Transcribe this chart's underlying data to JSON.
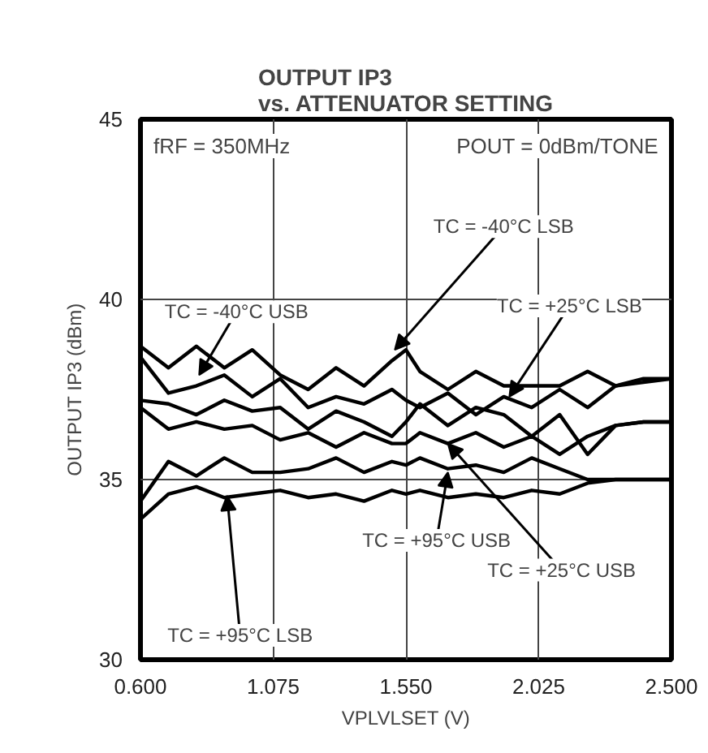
{
  "chart_data": {
    "type": "line",
    "title": "OUTPUT IP3\nvs. ATTENUATOR SETTING",
    "xlabel": "VPLVLSET (V)",
    "ylabel": "OUTPUT IP3 (dBm)",
    "x": [
      0.6,
      0.7,
      0.8,
      0.9,
      1.0,
      1.1,
      1.2,
      1.3,
      1.4,
      1.5,
      1.55,
      1.6,
      1.7,
      1.8,
      1.9,
      2.0,
      2.1,
      2.2,
      2.3,
      2.4,
      2.5
    ],
    "series": [
      {
        "color": "#000000",
        "values": [
          38.7,
          38.1,
          38.7,
          38.1,
          38.6,
          37.9,
          37.5,
          38.1,
          37.6,
          38.3,
          38.6,
          38.0,
          37.5,
          38.0,
          37.6,
          37.6,
          37.6,
          38.0,
          37.6,
          37.7,
          37.8
        ]
      },
      {
        "color": "#000000",
        "values": [
          38.4,
          37.4,
          37.6,
          37.9,
          37.3,
          37.8,
          37.0,
          37.3,
          37.1,
          37.5,
          37.2,
          37.0,
          37.4,
          36.8,
          37.3,
          37.0,
          37.5,
          37.0,
          37.6,
          37.8,
          37.8
        ]
      },
      {
        "color": "#000000",
        "values": [
          37.2,
          37.1,
          36.8,
          37.2,
          36.9,
          37.0,
          36.4,
          36.9,
          36.6,
          36.2,
          36.6,
          37.1,
          36.5,
          37.0,
          36.8,
          36.2,
          36.8,
          35.7,
          36.5,
          36.6,
          36.6
        ]
      },
      {
        "color": "#000000",
        "values": [
          37.0,
          36.4,
          36.6,
          36.4,
          36.5,
          36.1,
          36.3,
          35.9,
          36.3,
          36.0,
          36.0,
          36.3,
          36.0,
          36.3,
          35.9,
          36.2,
          35.7,
          36.2,
          36.5,
          36.6,
          36.6
        ]
      },
      {
        "color": "#000000",
        "values": [
          34.4,
          35.5,
          35.1,
          35.6,
          35.2,
          35.2,
          35.3,
          35.6,
          35.2,
          35.5,
          35.4,
          35.6,
          35.3,
          35.4,
          35.2,
          35.6,
          35.3,
          35.0,
          35.0,
          35.0,
          35.0
        ]
      },
      {
        "color": "#000000",
        "values": [
          33.9,
          34.6,
          34.8,
          34.5,
          34.6,
          34.7,
          34.5,
          34.6,
          34.4,
          34.7,
          34.6,
          34.7,
          34.5,
          34.6,
          34.5,
          34.7,
          34.6,
          34.9,
          35.0,
          35.0,
          35.0
        ]
      }
    ],
    "xlim": [
      0.6,
      2.5
    ],
    "ylim": [
      30,
      45
    ],
    "xticks": [
      {
        "value": 0.6,
        "label": "0.600"
      },
      {
        "value": 1.075,
        "label": "1.075"
      },
      {
        "value": 1.55,
        "label": "1.550"
      },
      {
        "value": 2.025,
        "label": "2.025"
      },
      {
        "value": 2.5,
        "label": "2.500"
      }
    ],
    "yticks": [
      30,
      35,
      40,
      45
    ],
    "grid": true,
    "marker": "none",
    "line_style": "solid",
    "annotations": [
      "fRF = 350MHz",
      "POUT = 0dBm/TONE",
      {
        "text": "TC = -40°C USB",
        "x": 0.81,
        "y": 37.9
      },
      {
        "text": "TC = -40°C LSB",
        "x": 1.51,
        "y": 38.6
      },
      {
        "text": "TC = +25°C LSB",
        "x": 1.92,
        "y": 37.3
      },
      {
        "text": "TC = +95°C USB",
        "x": 1.7,
        "y": 35.2
      },
      {
        "text": "TC = +25°C USB",
        "x": 1.7,
        "y": 36.0
      },
      {
        "text": "TC = +95°C LSB",
        "x": 0.91,
        "y": 34.55
      }
    ]
  }
}
